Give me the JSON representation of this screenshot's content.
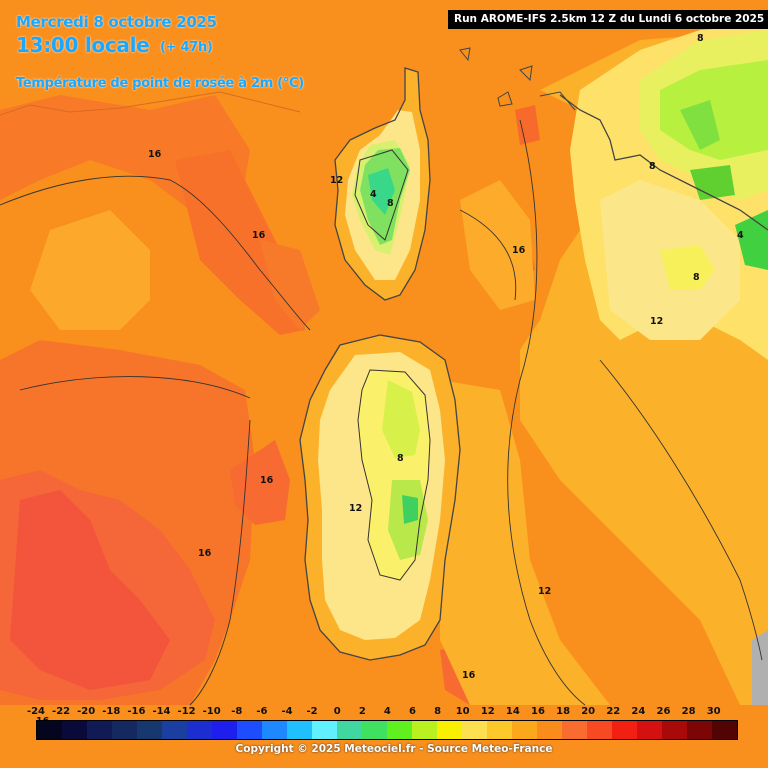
{
  "header": {
    "date": "Mercredi 8 octobre 2025",
    "local_time": "13:00 locale",
    "forecast_offset": "(+ 47h)",
    "parameter": "Température de point de rosée à 2m (°C)",
    "run_info": "Run AROME-IFS 2.5km 12 Z du Lundi 6 octobre 2025"
  },
  "contour_labels": [
    "16",
    "16",
    "16",
    "16",
    "16",
    "16",
    "16",
    "12",
    "12",
    "12",
    "12",
    "12",
    "8",
    "8",
    "8",
    "8",
    "4",
    "4",
    "8",
    "16"
  ],
  "legend": {
    "values": [
      "-24",
      "-22",
      "-20",
      "-18",
      "-16",
      "-14",
      "-12",
      "-10",
      "-8",
      "-6",
      "-4",
      "-2",
      "0",
      "2",
      "4",
      "6",
      "8",
      "10",
      "12",
      "14",
      "16",
      "18",
      "20",
      "22",
      "24",
      "26",
      "28",
      "30"
    ],
    "colors": [
      "#05051e",
      "#0a0a3a",
      "#101a55",
      "#13295f",
      "#16386e",
      "#1a3fa0",
      "#1c2ed0",
      "#1e1eee",
      "#1e4cff",
      "#1e88ff",
      "#20c0ff",
      "#60f0ff",
      "#40d8a0",
      "#40e060",
      "#60f020",
      "#b8f020",
      "#f8f000",
      "#fde050",
      "#fdc82a",
      "#fca81c",
      "#fa8c1c",
      "#f86c30",
      "#f74a22",
      "#f12012",
      "#d41010",
      "#a80a0a",
      "#7c0606",
      "#520303"
    ]
  },
  "copyright": "Copyright © 2025 Meteociel.fr - Source Meteo-France"
}
